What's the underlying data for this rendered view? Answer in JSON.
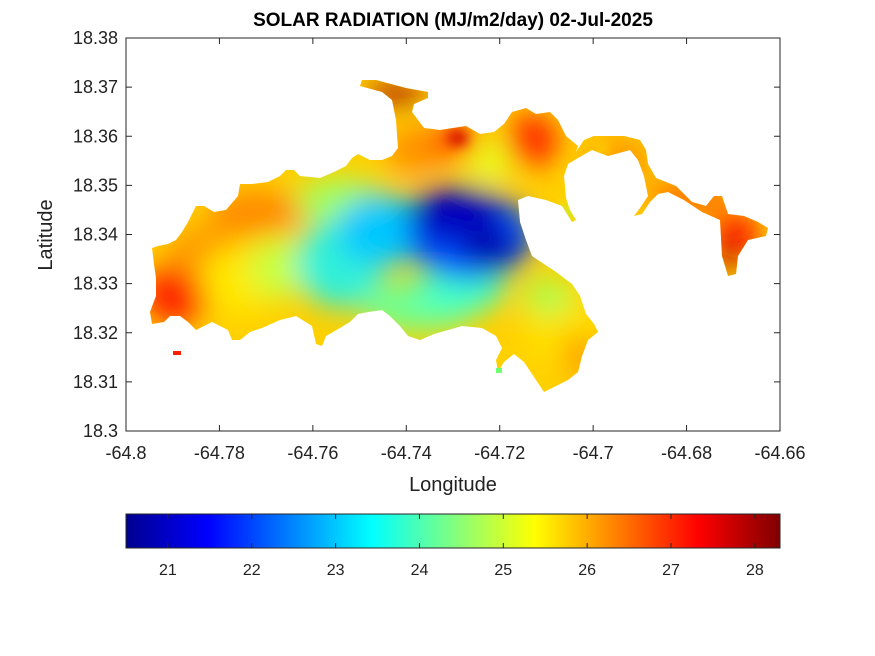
{
  "chart_data": {
    "type": "heatmap",
    "title": "SOLAR RADIATION (MJ/m2/day) 02-Jul-2025",
    "xlabel": "Longitude",
    "ylabel": "Latitude",
    "xlim": [
      -64.8,
      -64.66
    ],
    "ylim": [
      18.3,
      18.38
    ],
    "x_ticks": [
      "-64.8",
      "-64.78",
      "-64.76",
      "-64.74",
      "-64.72",
      "-64.7",
      "-64.68",
      "-64.66"
    ],
    "y_ticks": [
      "18.3",
      "18.31",
      "18.32",
      "18.33",
      "18.34",
      "18.35",
      "18.36",
      "18.37",
      "18.38"
    ],
    "colorbar": {
      "range": [
        20.5,
        28.3
      ],
      "ticks": [
        "21",
        "22",
        "23",
        "24",
        "25",
        "26",
        "27",
        "28"
      ],
      "colormap": "jet"
    },
    "grid": false,
    "regions": [
      {
        "name": "west-red",
        "lon": -64.788,
        "lat": 18.327,
        "value": 27.0
      },
      {
        "name": "west-orange",
        "lon": -64.78,
        "lat": 18.336,
        "value": 26.0
      },
      {
        "name": "northwest-orange",
        "lon": -64.77,
        "lat": 18.344,
        "value": 26.2
      },
      {
        "name": "central-west",
        "lon": -64.765,
        "lat": 18.333,
        "value": 25.3
      },
      {
        "name": "central-cyan",
        "lon": -64.75,
        "lat": 18.334,
        "value": 23.8
      },
      {
        "name": "center-blue-min",
        "lon": -64.73,
        "lat": 18.343,
        "value": 20.8
      },
      {
        "name": "east-blue",
        "lon": -64.72,
        "lat": 18.338,
        "value": 21.8
      },
      {
        "name": "south-green",
        "lon": -64.725,
        "lat": 18.325,
        "value": 24.5
      },
      {
        "name": "southeast-yellow",
        "lon": -64.712,
        "lat": 18.318,
        "value": 25.5
      },
      {
        "name": "north-red",
        "lon": -64.73,
        "lat": 18.359,
        "value": 27.0
      },
      {
        "name": "northeast-red",
        "lon": -64.714,
        "lat": 18.356,
        "value": 27.2
      },
      {
        "name": "north-peak",
        "lon": -64.747,
        "lat": 18.369,
        "value": 28.1
      },
      {
        "name": "east-orange",
        "lon": -64.695,
        "lat": 18.355,
        "value": 26.0
      },
      {
        "name": "far-east-red",
        "lon": -64.672,
        "lat": 18.336,
        "value": 27.6
      }
    ]
  }
}
